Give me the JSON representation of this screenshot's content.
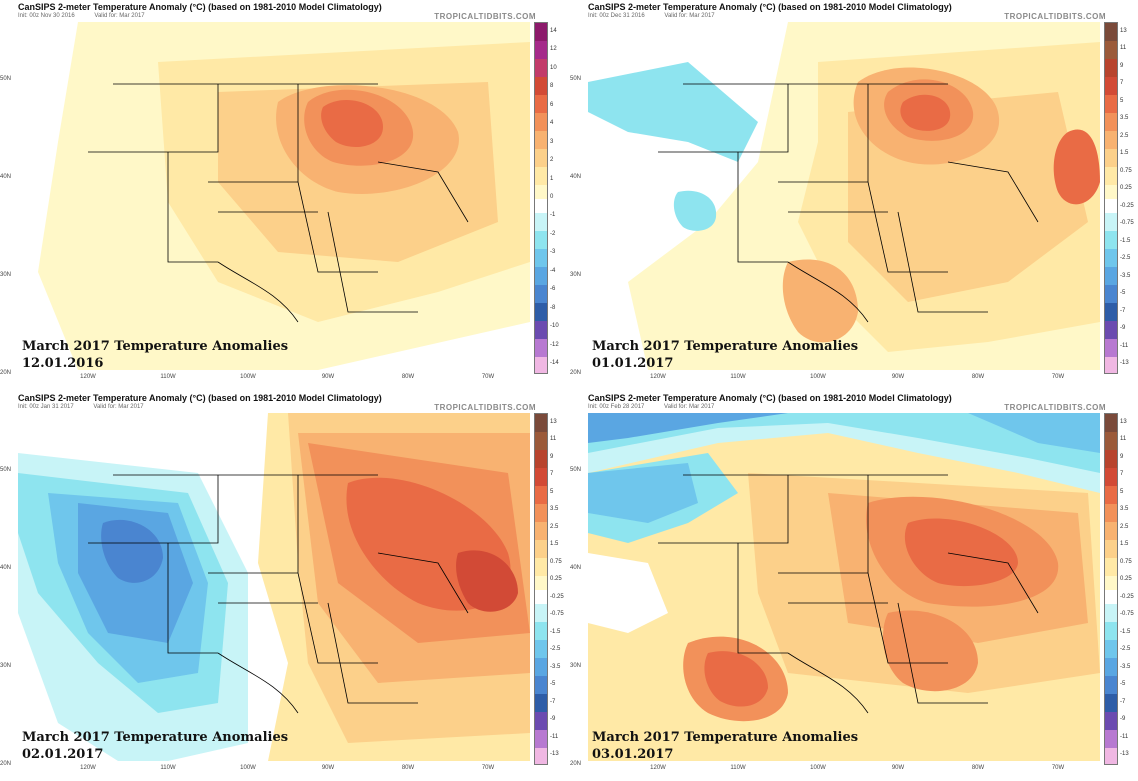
{
  "panels": [
    {
      "title": "CanSIPS 2-meter Temperature Anomaly (°C) (based on 1981-2010 Model Climatology)",
      "init": "Init: 00z Nov 30 2016",
      "valid": "Valid for: Mar 2017",
      "brand": "TROPICALTIDBITS.COM",
      "overlay_title": "March 2017 Temperature Anomalies",
      "overlay_date": "12.01.2016",
      "colorbar_labels": [
        "14",
        "12",
        "10",
        "8",
        "6",
        "4",
        "3",
        "2",
        "1",
        "0",
        "-1",
        "-2",
        "-3",
        "-4",
        "-6",
        "-8",
        "-10",
        "-12",
        "-14"
      ]
    },
    {
      "title": "CanSIPS 2-meter Temperature Anomaly (°C) (based on 1981-2010 Model Climatology)",
      "init": "Init: 00z Dec 31 2016",
      "valid": "Valid for: Mar 2017",
      "brand": "TROPICALTIDBITS.COM",
      "overlay_title": "March 2017 Temperature Anomalies",
      "overlay_date": "01.01.2017",
      "colorbar_labels": [
        "13",
        "11",
        "9",
        "7",
        "5",
        "3.5",
        "2.5",
        "1.5",
        "0.75",
        "0.25",
        "-0.25",
        "-0.75",
        "-1.5",
        "-2.5",
        "-3.5",
        "-5",
        "-7",
        "-9",
        "-11",
        "-13"
      ]
    },
    {
      "title": "CanSIPS 2-meter Temperature Anomaly (°C) (based on 1981-2010 Model Climatology)",
      "init": "Init: 00z Jan 31 2017",
      "valid": "Valid for: Mar 2017",
      "brand": "TROPICALTIDBITS.COM",
      "overlay_title": "March 2017 Temperature Anomalies",
      "overlay_date": "02.01.2017",
      "colorbar_labels": [
        "13",
        "11",
        "9",
        "7",
        "5",
        "3.5",
        "2.5",
        "1.5",
        "0.75",
        "0.25",
        "-0.25",
        "-0.75",
        "-1.5",
        "-2.5",
        "-3.5",
        "-5",
        "-7",
        "-9",
        "-11",
        "-13"
      ]
    },
    {
      "title": "CanSIPS 2-meter Temperature Anomaly (°C) (based on 1981-2010 Model Climatology)",
      "init": "Init: 00z Feb 28 2017",
      "valid": "Valid for: Mar 2017",
      "brand": "TROPICALTIDBITS.COM",
      "overlay_title": "March 2017 Temperature Anomalies",
      "overlay_date": "03.01.2017",
      "colorbar_labels": [
        "13",
        "11",
        "9",
        "7",
        "5",
        "3.5",
        "2.5",
        "1.5",
        "0.75",
        "0.25",
        "-0.25",
        "-0.75",
        "-1.5",
        "-2.5",
        "-3.5",
        "-5",
        "-7",
        "-9",
        "-11",
        "-13"
      ]
    }
  ],
  "lat_labels": [
    "50N",
    "40N",
    "30N",
    "20N"
  ],
  "lon_labels": [
    "120W",
    "110W",
    "100W",
    "90W",
    "80W",
    "70W"
  ],
  "colors": {
    "warm": [
      "#fff8c8",
      "#ffe9a6",
      "#fcd08a",
      "#f8b271",
      "#f2915a",
      "#e96b45",
      "#d24a36"
    ],
    "cold": [
      "#c8f4f7",
      "#8ee4ef",
      "#6fc6ec",
      "#5aa6e2",
      "#4a85d0",
      "#2e5da8"
    ],
    "neutral": "#ffffff"
  }
}
